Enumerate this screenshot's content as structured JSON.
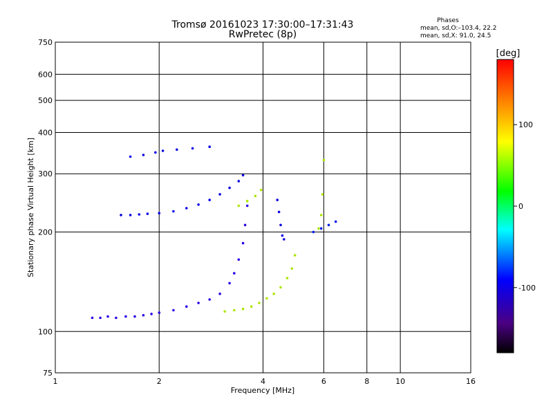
{
  "header": {
    "title_line1": "Tromsø 20161023 17:30:00–17:31:43",
    "title_line2": "RwPretec (8p)"
  },
  "stats": {
    "heading": "Phases",
    "line_o": "mean, sd,O:–103.4, 22.2",
    "line_x": "mean, sd,X:  91.0, 24.5"
  },
  "colorbar": {
    "unit_label": "[deg]",
    "tick_labels": [
      "100",
      "0",
      "-100"
    ],
    "tick_values": [
      100,
      0,
      -100
    ],
    "range": [
      -180,
      180
    ],
    "colormap": "rainbow (black-violet-blue-cyan-green-yellow-orange-red)"
  },
  "chart_data": {
    "type": "scatter",
    "title": "Tromsø 20161023 17:30:00–17:31:43",
    "subtitle": "RwPretec (8p)",
    "xlabel": "Frequency [MHz]",
    "ylabel": "Stationary phase Virtual Height [km]",
    "x_scale": "log",
    "y_scale": "log",
    "xlim": [
      1,
      16
    ],
    "ylim": [
      75,
      750
    ],
    "x_ticks": [
      1,
      2,
      4,
      6,
      8,
      10,
      16
    ],
    "x_tick_labels": [
      "1",
      "2",
      "4",
      "6",
      "8",
      "10",
      "16"
    ],
    "y_ticks": [
      75,
      100,
      200,
      300,
      400,
      500,
      600,
      750
    ],
    "y_tick_labels": [
      "75",
      "100",
      "200",
      "300",
      "400",
      "500",
      "600",
      "750"
    ],
    "grid": true,
    "color_by": "phase [deg]",
    "series": [
      {
        "points": [
          [
            1.28,
            110
          ],
          [
            1.35,
            110
          ],
          [
            1.42,
            111
          ],
          [
            1.5,
            110
          ],
          [
            1.6,
            111
          ],
          [
            1.7,
            111
          ],
          [
            1.8,
            112
          ],
          [
            1.9,
            113
          ],
          [
            2.0,
            114
          ],
          [
            2.2,
            116
          ],
          [
            2.4,
            119
          ],
          [
            2.6,
            122
          ],
          [
            2.8,
            125
          ],
          [
            3.0,
            130
          ],
          [
            3.2,
            140
          ],
          [
            3.3,
            150
          ],
          [
            3.4,
            165
          ],
          [
            3.5,
            185
          ],
          [
            3.55,
            210
          ],
          [
            3.6,
            240
          ]
        ],
        "phase": -120
      },
      {
        "points": [
          [
            3.1,
            115
          ],
          [
            3.3,
            116
          ],
          [
            3.5,
            117
          ],
          [
            3.7,
            119
          ],
          [
            3.9,
            122
          ],
          [
            4.1,
            126
          ],
          [
            4.3,
            130
          ],
          [
            4.5,
            136
          ],
          [
            4.7,
            145
          ],
          [
            4.85,
            155
          ],
          [
            4.95,
            170
          ]
        ],
        "phase": 90
      },
      {
        "points": [
          [
            1.55,
            225
          ],
          [
            1.65,
            225
          ],
          [
            1.75,
            226
          ],
          [
            1.85,
            227
          ],
          [
            2.0,
            228
          ],
          [
            2.2,
            231
          ],
          [
            2.4,
            236
          ],
          [
            2.6,
            242
          ],
          [
            2.8,
            250
          ],
          [
            3.0,
            260
          ],
          [
            3.2,
            272
          ],
          [
            3.4,
            285
          ],
          [
            3.5,
            297
          ]
        ],
        "phase": -110
      },
      {
        "points": [
          [
            3.4,
            240
          ],
          [
            3.6,
            248
          ],
          [
            3.8,
            257
          ],
          [
            3.95,
            268
          ]
        ],
        "phase": 90
      },
      {
        "points": [
          [
            1.65,
            338
          ],
          [
            1.8,
            342
          ],
          [
            1.95,
            348
          ],
          [
            2.05,
            352
          ],
          [
            2.25,
            355
          ],
          [
            2.5,
            358
          ],
          [
            2.8,
            362
          ]
        ],
        "phase": -110
      },
      {
        "points": [
          [
            4.4,
            250
          ],
          [
            4.45,
            230
          ],
          [
            4.5,
            210
          ],
          [
            4.55,
            195
          ],
          [
            4.6,
            190
          ]
        ],
        "phase": -110
      },
      {
        "points": [
          [
            5.6,
            200
          ],
          [
            5.9,
            205
          ],
          [
            6.2,
            210
          ],
          [
            6.5,
            215
          ]
        ],
        "phase": -100
      },
      {
        "points": [
          [
            5.8,
            205
          ],
          [
            5.9,
            225
          ],
          [
            5.95,
            260
          ],
          [
            6.0,
            330
          ]
        ],
        "phase": 90
      }
    ]
  }
}
